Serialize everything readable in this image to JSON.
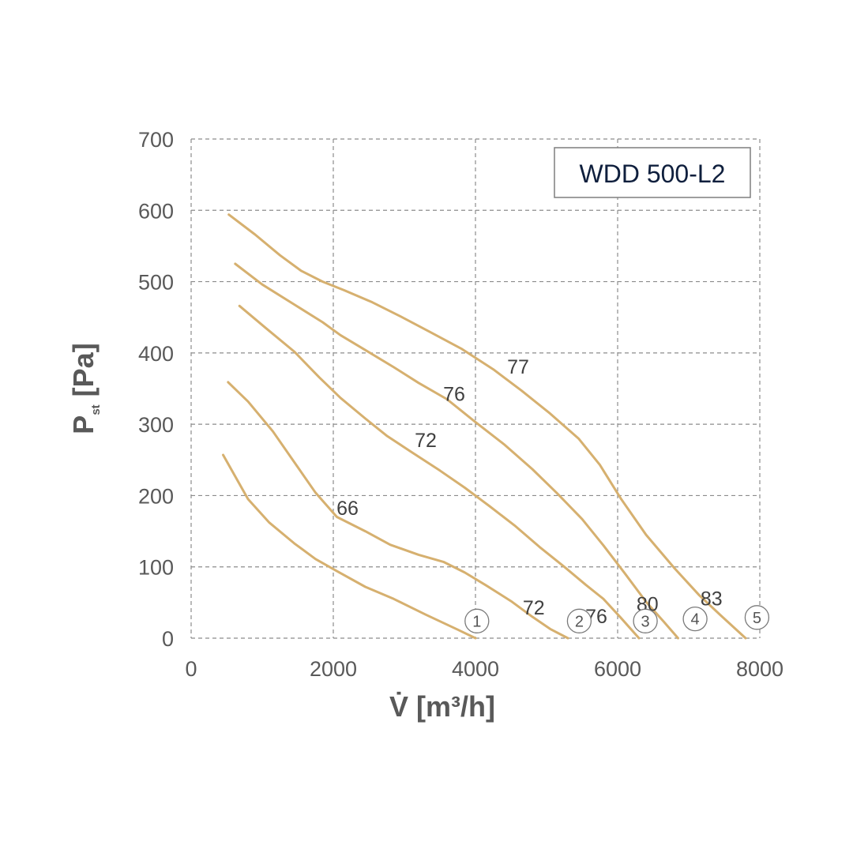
{
  "chart_data": {
    "type": "line",
    "title": "WDD 500-L2",
    "xlabel": "V̇ [m³/h]",
    "ylabel": "Pst [Pa]",
    "xlim": [
      0,
      8000
    ],
    "ylim": [
      0,
      700
    ],
    "x_ticks": [
      "0",
      "2000",
      "4000",
      "6000",
      "8000"
    ],
    "y_ticks": [
      "0",
      "100",
      "200",
      "300",
      "400",
      "500",
      "600",
      "700"
    ],
    "grid": true,
    "line_color": "#d6b06f",
    "series": [
      {
        "name": "1",
        "points": [
          [
            450,
            257
          ],
          [
            800,
            195
          ],
          [
            1100,
            162
          ],
          [
            1450,
            133
          ],
          [
            1750,
            111
          ],
          [
            2050,
            94
          ],
          [
            2450,
            72
          ],
          [
            2850,
            55
          ],
          [
            3300,
            33
          ],
          [
            3750,
            12
          ],
          [
            4000,
            0
          ]
        ]
      },
      {
        "name": "2",
        "points": [
          [
            520,
            359
          ],
          [
            800,
            332
          ],
          [
            1150,
            290
          ],
          [
            1450,
            247
          ],
          [
            1750,
            204
          ],
          [
            2050,
            170
          ],
          [
            2450,
            150
          ],
          [
            2800,
            131
          ],
          [
            3200,
            117
          ],
          [
            3550,
            107
          ],
          [
            3850,
            92
          ],
          [
            4150,
            74
          ],
          [
            4500,
            52
          ],
          [
            4800,
            30
          ],
          [
            5050,
            13
          ],
          [
            5300,
            0
          ]
        ]
      },
      {
        "name": "3",
        "points": [
          [
            680,
            466
          ],
          [
            1050,
            435
          ],
          [
            1450,
            402
          ],
          [
            1800,
            366
          ],
          [
            2100,
            337
          ],
          [
            2450,
            308
          ],
          [
            2750,
            284
          ],
          [
            3100,
            261
          ],
          [
            3500,
            235
          ],
          [
            3850,
            211
          ],
          [
            4200,
            185
          ],
          [
            4550,
            158
          ],
          [
            4900,
            128
          ],
          [
            5250,
            100
          ],
          [
            5550,
            75
          ],
          [
            5800,
            55
          ],
          [
            6050,
            28
          ],
          [
            6300,
            0
          ]
        ]
      },
      {
        "name": "4",
        "points": [
          [
            620,
            525
          ],
          [
            1000,
            496
          ],
          [
            1450,
            468
          ],
          [
            1850,
            443
          ],
          [
            2100,
            425
          ],
          [
            2450,
            404
          ],
          [
            2850,
            380
          ],
          [
            3200,
            358
          ],
          [
            3600,
            335
          ],
          [
            4000,
            303
          ],
          [
            4400,
            272
          ],
          [
            4800,
            237
          ],
          [
            5150,
            203
          ],
          [
            5500,
            167
          ],
          [
            5800,
            130
          ],
          [
            6100,
            91
          ],
          [
            6400,
            51
          ],
          [
            6650,
            23
          ],
          [
            6850,
            0
          ]
        ]
      },
      {
        "name": "5",
        "points": [
          [
            530,
            594
          ],
          [
            900,
            566
          ],
          [
            1250,
            537
          ],
          [
            1550,
            515
          ],
          [
            1850,
            500
          ],
          [
            2150,
            488
          ],
          [
            2550,
            471
          ],
          [
            2950,
            451
          ],
          [
            3350,
            430
          ],
          [
            3800,
            406
          ],
          [
            4250,
            377
          ],
          [
            4650,
            347
          ],
          [
            5050,
            315
          ],
          [
            5450,
            280
          ],
          [
            5750,
            243
          ],
          [
            6050,
            195
          ],
          [
            6400,
            145
          ],
          [
            6800,
            98
          ],
          [
            7150,
            60
          ],
          [
            7450,
            32
          ],
          [
            7800,
            0
          ]
        ]
      }
    ],
    "curve_labels": [
      {
        "text": "66",
        "x": 2200,
        "y": 183
      },
      {
        "text": "72",
        "x": 3300,
        "y": 278
      },
      {
        "text": "76",
        "x": 3700,
        "y": 343
      },
      {
        "text": "77",
        "x": 4600,
        "y": 381
      },
      {
        "text": "72",
        "x": 4820,
        "y": 43
      },
      {
        "text": "76",
        "x": 5700,
        "y": 31
      },
      {
        "text": "80",
        "x": 6420,
        "y": 48
      },
      {
        "text": "83",
        "x": 7320,
        "y": 56
      }
    ],
    "markers": [
      {
        "text": "1",
        "x": 4020,
        "y": 24
      },
      {
        "text": "2",
        "x": 5460,
        "y": 24
      },
      {
        "text": "3",
        "x": 6390,
        "y": 24
      },
      {
        "text": "4",
        "x": 7090,
        "y": 27
      },
      {
        "text": "5",
        "x": 7960,
        "y": 29
      }
    ]
  }
}
